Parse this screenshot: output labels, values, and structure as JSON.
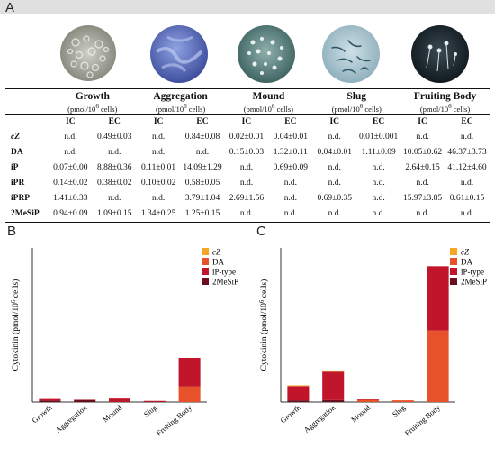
{
  "panels": {
    "a": "A",
    "b": "B",
    "c": "C"
  },
  "stages": [
    {
      "name": "Growth",
      "img": "growth-colony",
      "unit_prefix": "(pmol/10",
      "unit_exp": "6",
      "unit_suffix": " cells)"
    },
    {
      "name": "Aggregation",
      "img": "aggregation-streams",
      "unit_prefix": "(pmol/10",
      "unit_exp": "6",
      "unit_suffix": " cells)"
    },
    {
      "name": "Mound",
      "img": "mound-clusters",
      "unit_prefix": "(pmol/10",
      "unit_exp": "6",
      "unit_suffix": " cells)"
    },
    {
      "name": "Slug",
      "img": "slug-migrating",
      "unit_prefix": "(pmol/10",
      "unit_exp": "6",
      "unit_suffix": " cells)"
    },
    {
      "name": "Fruiting Body",
      "img": "fruiting-body-dark",
      "unit_prefix": "(pmol/10",
      "unit_exp": "6",
      "unit_suffix": " cells)"
    }
  ],
  "table": {
    "subheaders": [
      "IC",
      "EC",
      "IC",
      "EC",
      "IC",
      "EC",
      "IC",
      "EC",
      "IC",
      "EC"
    ],
    "rows": [
      {
        "label": "cZ",
        "italic": true,
        "values": [
          "n.d.",
          "0.49±0.03",
          "n.d.",
          "0.84±0.08",
          "0.02±0.01",
          "0.04±0.01",
          "n.d.",
          "0.01±0.001",
          "n.d.",
          "n.d."
        ]
      },
      {
        "label": "DA",
        "italic": false,
        "values": [
          "n.d.",
          "n.d.",
          "n.d.",
          "n.d.",
          "0.15±0.03",
          "1.32±0.11",
          "0.04±0.01",
          "1.11±0.09",
          "10.05±0.62",
          "46.37±3.73"
        ]
      },
      {
        "label": "iP",
        "italic": false,
        "values": [
          "0.07±0.00",
          "8.88±0.36",
          "0.11±0.01",
          "14.09±1.29",
          "n.d.",
          "0.69±0.09",
          "n.d.",
          "n.d.",
          "2.64±0.15",
          "41.12±4.60"
        ]
      },
      {
        "label": "iPR",
        "italic": false,
        "values": [
          "0.14±0.02",
          "0.38±0.02",
          "0.10±0.02",
          "0.58±0.05",
          "n.d.",
          "n.d.",
          "n.d.",
          "n.d.",
          "n.d.",
          "n.d."
        ]
      },
      {
        "label": "iPRP",
        "italic": false,
        "values": [
          "1.41±0.33",
          "n.d.",
          "n.d.",
          "3.79±1.04",
          "2.69±1.56",
          "n.d.",
          "0.69±0.35",
          "n.d.",
          "15.97±3.85",
          "0.61±0.15"
        ]
      },
      {
        "label": "2MeSiP",
        "italic": false,
        "values": [
          "0.94±0.09",
          "1.09±0.15",
          "1.34±0.25",
          "1.25±0.15",
          "n.d.",
          "n.d.",
          "n.d.",
          "n.d.",
          "n.d.",
          "n.d."
        ]
      }
    ]
  },
  "legend": [
    {
      "label": "cZ",
      "italic": true,
      "color": "#f5a623"
    },
    {
      "label": "DA",
      "italic": false,
      "color": "#e8522a"
    },
    {
      "label": "iP-type",
      "italic": false,
      "color": "#c0152a"
    },
    {
      "label": "2MeSiP",
      "italic": false,
      "color": "#6b0f1f"
    }
  ],
  "chart_data": [
    {
      "type": "bar",
      "stacked": true,
      "categories": [
        "Growth",
        "Aggregation",
        "Mound",
        "Slug",
        "Fruiting Body"
      ],
      "ylabel_prefix": "Cytokinin (pmol/10",
      "ylabel_exp": "6",
      "ylabel_suffix": " cells)",
      "ylim": [
        0,
        100
      ],
      "series": [
        {
          "name": "cZ",
          "values": [
            0,
            0,
            0.02,
            0,
            0
          ]
        },
        {
          "name": "DA",
          "values": [
            0,
            0,
            0.15,
            0.04,
            10.05
          ]
        },
        {
          "name": "iP-type",
          "values": [
            1.62,
            0.21,
            2.69,
            0.69,
            18.61
          ]
        },
        {
          "name": "2MeSiP",
          "values": [
            0.94,
            1.34,
            0,
            0,
            0
          ]
        }
      ],
      "legend_position": "top-right",
      "grid": false
    },
    {
      "type": "bar",
      "stacked": true,
      "categories": [
        "Growth",
        "Aggregation",
        "Mound",
        "Slug",
        "Fruiting Body"
      ],
      "ylabel_prefix": "Cytokinin (pmol/10",
      "ylabel_exp": "6",
      "ylabel_suffix": " cells)",
      "ylim": [
        0,
        100
      ],
      "series": [
        {
          "name": "cZ",
          "values": [
            0.49,
            0.84,
            0.04,
            0.01,
            0
          ]
        },
        {
          "name": "DA",
          "values": [
            0,
            0,
            1.32,
            1.11,
            46.37
          ]
        },
        {
          "name": "iP-type",
          "values": [
            9.26,
            18.46,
            0.69,
            0,
            41.73
          ]
        },
        {
          "name": "2MeSiP",
          "values": [
            1.09,
            1.25,
            0,
            0,
            0
          ]
        }
      ],
      "legend_position": "top-right",
      "grid": false
    }
  ]
}
